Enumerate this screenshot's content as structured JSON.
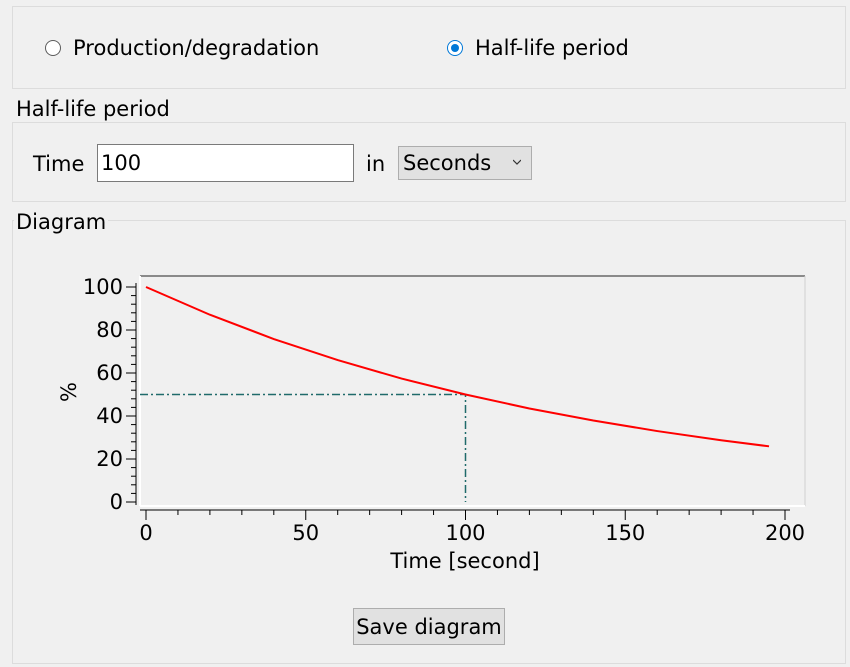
{
  "mode": {
    "options": [
      {
        "label": "Production/degradation",
        "checked": false
      },
      {
        "label": "Half-life period",
        "checked": true
      }
    ]
  },
  "half_life": {
    "title": "Half-life period",
    "time_label": "Time",
    "time_value": "100",
    "in_label": "in",
    "unit_selected": "Seconds"
  },
  "diagram": {
    "title": "Diagram",
    "save_label": "Save diagram"
  },
  "colors": {
    "curve": "#ff0000",
    "marker": "#1f6b6b",
    "radio_accent": "#0078d7"
  },
  "chart_data": {
    "type": "line",
    "title": "",
    "xlabel": "Time [second]",
    "ylabel": "%",
    "xlim": [
      0,
      200
    ],
    "ylim": [
      0,
      100
    ],
    "xticks": [
      "0",
      "50",
      "100",
      "150",
      "200"
    ],
    "yticks": [
      "0",
      "20",
      "40",
      "60",
      "80",
      "100"
    ],
    "grid": false,
    "series": [
      {
        "x": [
          0,
          20,
          40,
          60,
          80,
          100,
          120,
          140,
          160,
          180,
          195
        ],
        "y": [
          100,
          87.1,
          75.8,
          66.0,
          57.4,
          50.0,
          43.5,
          37.9,
          33.0,
          28.7,
          25.9
        ]
      }
    ],
    "marker": {
      "x": 100,
      "y": 50
    }
  }
}
